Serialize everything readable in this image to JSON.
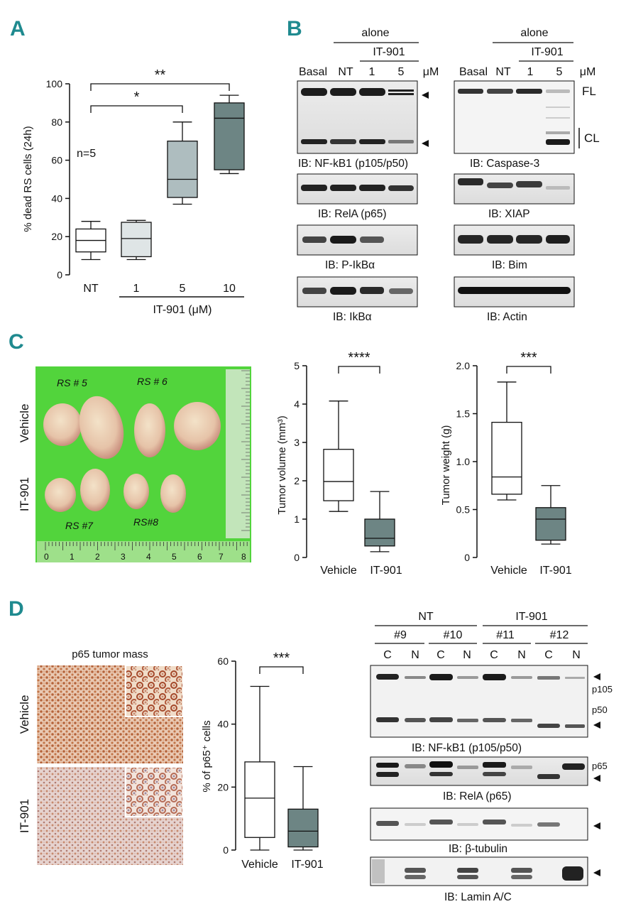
{
  "panels": {
    "a": "A",
    "b": "B",
    "c": "C",
    "d": "D"
  },
  "colors": {
    "panel_label": "#1f8a8f",
    "box_white": "#ffffff",
    "box_light": "#dfe5e6",
    "box_mid": "#aebdbf",
    "box_dark": "#6d8584",
    "tumor_bg": "#4fd63a",
    "ihc_brown": "#a0522d"
  },
  "chart_data": [
    {
      "type": "box",
      "panel": "A",
      "title": "",
      "ylabel": "% dead RS cells (24h)",
      "ylim": [
        0,
        100
      ],
      "yticks": [
        "0",
        "20",
        "40",
        "60",
        "80",
        "100"
      ],
      "categories": [
        "NT",
        "1",
        "5",
        "10"
      ],
      "group_label": "IT-901 (μM)",
      "annotation": "n=5",
      "significance": [
        {
          "from": "NT",
          "to": "5",
          "label": "*"
        },
        {
          "from": "NT",
          "to": "10",
          "label": "**"
        }
      ],
      "boxes": [
        {
          "min": 8,
          "q1": 12,
          "median": 18,
          "q3": 24,
          "max": 28
        },
        {
          "min": 8,
          "q1": 9.5,
          "median": 19,
          "q3": 27.5,
          "max": 28.5
        },
        {
          "min": 37,
          "q1": 40.5,
          "median": 50,
          "q3": 70,
          "max": 80
        },
        {
          "min": 53,
          "q1": 55,
          "median": 82,
          "q3": 90,
          "max": 94
        }
      ]
    },
    {
      "type": "box",
      "panel": "C-volume",
      "title": "",
      "ylabel": "Tumor volume (mm³)",
      "ylim": [
        0,
        5
      ],
      "yticks": [
        "0",
        "1",
        "2",
        "3",
        "4",
        "5"
      ],
      "categories": [
        "Vehicle",
        "IT-901"
      ],
      "significance": [
        {
          "from": "Vehicle",
          "to": "IT-901",
          "label": "****"
        }
      ],
      "boxes": [
        {
          "min": 1.2,
          "q1": 1.48,
          "median": 1.98,
          "q3": 2.82,
          "max": 4.08
        },
        {
          "min": 0.15,
          "q1": 0.3,
          "median": 0.5,
          "q3": 1.0,
          "max": 1.72
        }
      ]
    },
    {
      "type": "box",
      "panel": "C-weight",
      "title": "",
      "ylabel": "Tumor weight (g)",
      "ylim": [
        0,
        2.0
      ],
      "yticks": [
        "0",
        "0.5",
        "1.0",
        "1.5",
        "2.0"
      ],
      "categories": [
        "Vehicle",
        "IT-901"
      ],
      "significance": [
        {
          "from": "Vehicle",
          "to": "IT-901",
          "label": "***"
        }
      ],
      "boxes": [
        {
          "min": 0.6,
          "q1": 0.66,
          "median": 0.84,
          "q3": 1.41,
          "max": 1.83
        },
        {
          "min": 0.14,
          "q1": 0.18,
          "median": 0.4,
          "q3": 0.52,
          "max": 0.75
        }
      ]
    },
    {
      "type": "box",
      "panel": "D",
      "title": "",
      "ylabel": "% of p65⁺ cells",
      "ylim": [
        0,
        60
      ],
      "yticks": [
        "0",
        "20",
        "40",
        "60"
      ],
      "categories": [
        "Vehicle",
        "IT-901"
      ],
      "significance": [
        {
          "from": "Vehicle",
          "to": "IT-901",
          "label": "***"
        }
      ],
      "boxes": [
        {
          "min": 0,
          "q1": 4,
          "median": 16.5,
          "q3": 28,
          "max": 52
        },
        {
          "min": 0,
          "q1": 1,
          "median": 6,
          "q3": 13,
          "max": 26.5
        }
      ]
    }
  ],
  "blots_b": {
    "left": {
      "header_alone": "alone",
      "header_drug": "IT-901",
      "lanes": [
        "Basal",
        "NT",
        "1",
        "5"
      ],
      "unit": "μM",
      "captions": [
        "IB: NF-kB1 (p105/p50)",
        "IB: RelA (p65)",
        "IB: P-IkBα",
        "IB: IkBα"
      ]
    },
    "right": {
      "header_alone": "alone",
      "header_drug": "IT-901",
      "lanes": [
        "Basal",
        "NT",
        "1",
        "5"
      ],
      "unit": "μM",
      "fl_label": "FL",
      "cl_label": "CL",
      "captions": [
        "IB: Caspase-3",
        "IB: XIAP",
        "IB: Bim",
        "IB: Actin"
      ]
    }
  },
  "photo_c": {
    "row_labels": [
      "Vehicle",
      "IT-901"
    ],
    "tags": [
      "RS # 5",
      "RS # 6",
      "RS #7",
      "RS#8"
    ],
    "ruler_numbers": [
      "0",
      "1",
      "2",
      "3",
      "4",
      "5",
      "6",
      "7",
      "8"
    ]
  },
  "ihc_d": {
    "title": "p65 tumor mass",
    "row_labels": [
      "Vehicle",
      "IT-901"
    ]
  },
  "blots_d": {
    "groups": [
      "NT",
      "IT-901"
    ],
    "samples": [
      "#9",
      "#10",
      "#11",
      "#12"
    ],
    "fractions": [
      "C",
      "N",
      "C",
      "N",
      "C",
      "N",
      "C",
      "N"
    ],
    "side_labels": [
      "p105",
      "p50",
      "p65"
    ],
    "captions": [
      "IB: NF-kB1 (p105/p50)",
      "IB: RelA (p65)",
      "IB: β-tubulin",
      "IB: Lamin A/C"
    ]
  }
}
